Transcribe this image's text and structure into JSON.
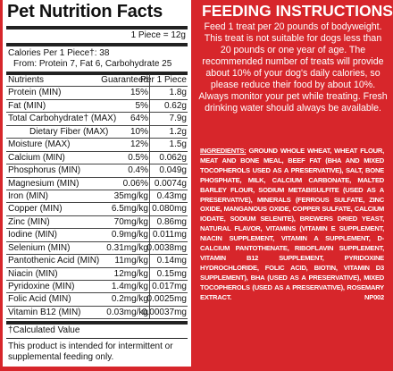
{
  "nutrition": {
    "title": "Pet Nutrition Facts",
    "serving": "1 Piece = 12g",
    "calories": "Calories Per 1 Piece†: 38",
    "calories_from": "From: Protein 7, Fat 6, Carbohydrate 25",
    "columns": [
      "Nutrients",
      "Guaranteed",
      "Per 1 Piece"
    ],
    "rows": [
      {
        "nutrient": "Protein (MIN)",
        "guaranteed": "15%",
        "per_piece": "1.8g"
      },
      {
        "nutrient": "Fat (MIN)",
        "guaranteed": "5%",
        "per_piece": "0.62g"
      },
      {
        "nutrient": "Total Carbohydrate† (MAX)",
        "guaranteed": "64%",
        "per_piece": "7.9g"
      },
      {
        "nutrient": "Dietary Fiber (MAX)",
        "guaranteed": "10%",
        "per_piece": "1.2g",
        "indent": true
      },
      {
        "nutrient": "Moisture (MAX)",
        "guaranteed": "12%",
        "per_piece": "1.5g"
      },
      {
        "nutrient": "Calcium (MIN)",
        "guaranteed": "0.5%",
        "per_piece": "0.062g"
      },
      {
        "nutrient": "Phosphorus (MIN)",
        "guaranteed": "0.4%",
        "per_piece": "0.049g"
      },
      {
        "nutrient": "Magnesium (MIN)",
        "guaranteed": "0.06%",
        "per_piece": "0.0074g"
      },
      {
        "nutrient": "Iron (MIN)",
        "guaranteed": "35mg/kg",
        "per_piece": "0.43mg"
      },
      {
        "nutrient": "Copper (MIN)",
        "guaranteed": "6.5mg/kg",
        "per_piece": "0.080mg"
      },
      {
        "nutrient": "Zinc (MIN)",
        "guaranteed": "70mg/kg",
        "per_piece": "0.86mg"
      },
      {
        "nutrient": "Iodine (MIN)",
        "guaranteed": "0.9mg/kg",
        "per_piece": "0.011mg"
      },
      {
        "nutrient": "Selenium (MIN)",
        "guaranteed": "0.31mg/kg",
        "per_piece": "0.0038mg"
      },
      {
        "nutrient": "Pantothenic Acid (MIN)",
        "guaranteed": "11mg/kg",
        "per_piece": "0.14mg"
      },
      {
        "nutrient": "Niacin (MIN)",
        "guaranteed": "12mg/kg",
        "per_piece": "0.15mg"
      },
      {
        "nutrient": "Pyridoxine (MIN)",
        "guaranteed": "1.4mg/kg",
        "per_piece": "0.017mg"
      },
      {
        "nutrient": "Folic Acid (MIN)",
        "guaranteed": "0.2mg/kg",
        "per_piece": "0.0025mg"
      },
      {
        "nutrient": "Vitamin B12 (MIN)",
        "guaranteed": "0.03mg/kg",
        "per_piece": "0.00037mg"
      }
    ],
    "footnote": "†Calculated Value",
    "note": "This product is intended for intermittent or supplemental feeding only."
  },
  "feeding": {
    "title": "FEEDING INSTRUCTIONS:",
    "text": "Feed 1 treat per 20 pounds of bodyweight. This treat is not suitable for dogs less than 20 pounds or one year of age. The recommended number of treats will provide about 10% of your dog's daily calories, so please reduce their food by about 10%. Always monitor your pet while treating. Fresh drinking water should always be available."
  },
  "ingredients": {
    "label": "INGREDIENTS:",
    "text": "GROUND WHOLE WHEAT, WHEAT FLOUR, MEAT AND BONE MEAL, BEEF FAT (BHA AND MIXED TOCOPHEROLS USED AS A PRESERVATIVE), SALT, BONE PHOSPHATE, MILK, CALCIUM CARBONATE, MALTED BARLEY FLOUR, SODIUM METABISULFITE (USED AS A PRESERVATIVE), MINERALS (FERROUS SULFATE, ZINC OXIDE, MANGANOUS OXIDE, COPPER SULFATE, CALCIUM IODATE, SODIUM SELENITE), BREWERS DRIED YEAST, NATURAL FLAVOR, VITAMINS (VITAMIN E SUPPLEMENT, NIACIN SUPPLEMENT, VITAMIN A SUPPLEMENT, D-CALCIUM PANTOTHENATE, RIBOFLAVIN SUPPLEMENT, VITAMIN B12 SUPPLEMENT, PYRIDOXINE HYDROCHLORIDE, FOLIC ACID, BIOTIN, VITAMIN D3 SUPPLEMENT), BHA (USED AS A PRESERVATIVE), MIXED TOCOPHEROLS (USED AS A PRESERVATIVE), ROSEMARY EXTRACT.",
    "code": "NP002"
  }
}
